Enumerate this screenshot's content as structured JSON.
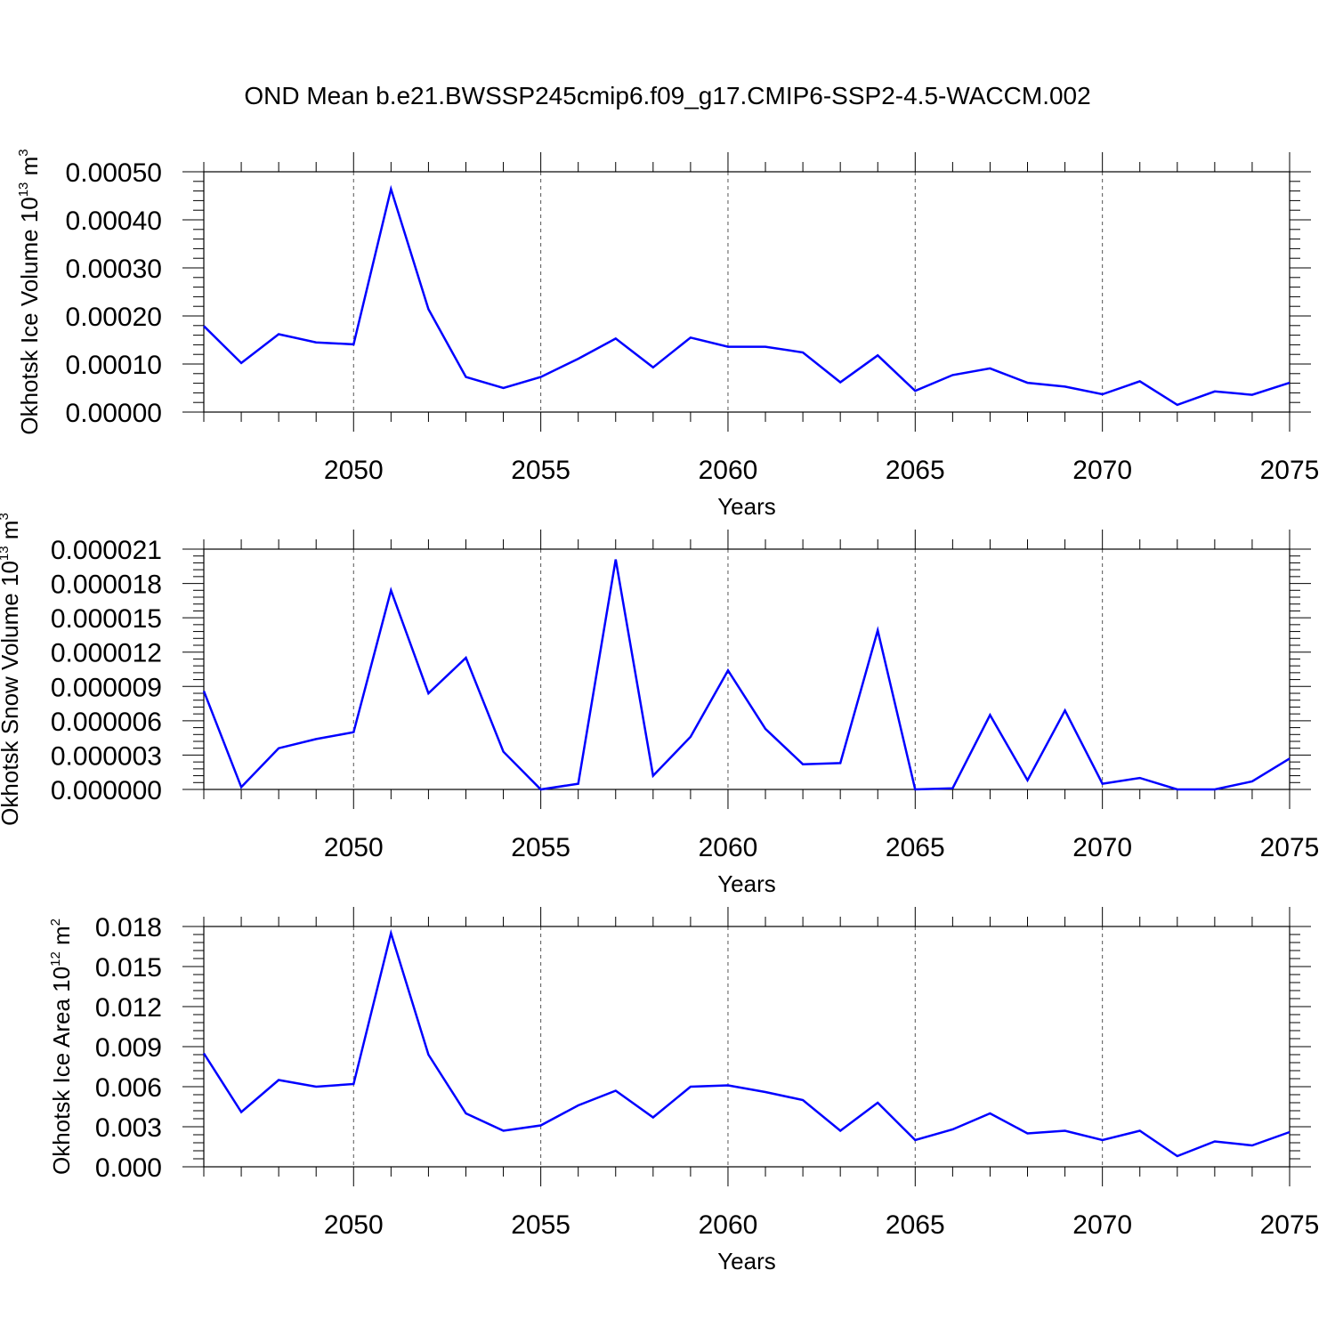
{
  "title": "OND Mean b.e21.BWSSP245cmip6.f09_g17.CMIP6-SSP2-4.5-WACCM.002",
  "chart_data": [
    {
      "type": "line",
      "ylabel_main": "Okhotsk Ice Volume 10",
      "ylabel_exp": "13",
      "ylabel_unit": " m",
      "ylabel_unit_exp": "3",
      "xlabel": "Years",
      "xlim": [
        2046,
        2075
      ],
      "ylim": [
        0,
        0.0005
      ],
      "yticks": [
        0,
        0.0001,
        0.0002,
        0.0003,
        0.0004,
        0.0005
      ],
      "ytick_labels": [
        "0.00000",
        "0.00010",
        "0.00020",
        "0.00030",
        "0.00040",
        "0.00050"
      ],
      "xticks": [
        2050,
        2055,
        2060,
        2065,
        2070,
        2075
      ],
      "xtick_labels": [
        "2050",
        "2055",
        "2060",
        "2065",
        "2070",
        "2075"
      ],
      "color": "#0000ff",
      "x": [
        2046,
        2047,
        2048,
        2049,
        2050,
        2051,
        2052,
        2053,
        2054,
        2055,
        2056,
        2057,
        2058,
        2059,
        2060,
        2061,
        2062,
        2063,
        2064,
        2065,
        2066,
        2067,
        2068,
        2069,
        2070,
        2071,
        2072,
        2073,
        2074,
        2075
      ],
      "values": [
        0.000179,
        0.000102,
        0.000162,
        0.000145,
        0.000141,
        0.000464,
        0.000214,
        7.3e-05,
        5e-05,
        7.3e-05,
        0.000111,
        0.000153,
        9.3e-05,
        0.000155,
        0.000136,
        0.000136,
        0.000124,
        6.2e-05,
        0.000118,
        4.4e-05,
        7.7e-05,
        9.1e-05,
        6.1e-05,
        5.3e-05,
        3.7e-05,
        6.4e-05,
        1.5e-05,
        4.3e-05,
        3.6e-05,
        6.1e-05
      ]
    },
    {
      "type": "line",
      "ylabel_main": "Okhotsk Snow Volume 10",
      "ylabel_exp": "13",
      "ylabel_unit": " m",
      "ylabel_unit_exp": "3",
      "xlabel": "Years",
      "xlim": [
        2046,
        2075
      ],
      "ylim": [
        0,
        2.1e-05
      ],
      "yticks": [
        0,
        3e-06,
        6e-06,
        9e-06,
        1.2e-05,
        1.5e-05,
        1.8e-05,
        2.1e-05
      ],
      "ytick_labels": [
        "0.000000",
        "0.000003",
        "0.000006",
        "0.000009",
        "0.000012",
        "0.000015",
        "0.000018",
        "0.000021"
      ],
      "xticks": [
        2050,
        2055,
        2060,
        2065,
        2070,
        2075
      ],
      "xtick_labels": [
        "2050",
        "2055",
        "2060",
        "2065",
        "2070",
        "2075"
      ],
      "color": "#0000ff",
      "x": [
        2046,
        2047,
        2048,
        2049,
        2050,
        2051,
        2052,
        2053,
        2054,
        2055,
        2056,
        2057,
        2058,
        2059,
        2060,
        2061,
        2062,
        2063,
        2064,
        2065,
        2066,
        2067,
        2068,
        2069,
        2070,
        2071,
        2072,
        2073,
        2074,
        2075
      ],
      "values": [
        8.6e-06,
        2e-07,
        3.6e-06,
        4.4e-06,
        5e-06,
        1.74e-05,
        8.4e-06,
        1.15e-05,
        3.3e-06,
        0.0,
        5e-07,
        2.01e-05,
        1.2e-06,
        4.6e-06,
        1.04e-05,
        5.3e-06,
        2.2e-06,
        2.3e-06,
        1.39e-05,
        0.0,
        1e-07,
        6.5e-06,
        8e-07,
        6.9e-06,
        5e-07,
        1e-06,
        0.0,
        0.0,
        7e-07,
        2.7e-06
      ]
    },
    {
      "type": "line",
      "ylabel_main": "Okhotsk Ice Area 10",
      "ylabel_exp": "12",
      "ylabel_unit": " m",
      "ylabel_unit_exp": "2",
      "xlabel": "Years",
      "xlim": [
        2046,
        2075
      ],
      "ylim": [
        0,
        0.018
      ],
      "yticks": [
        0,
        0.003,
        0.006,
        0.009,
        0.012,
        0.015,
        0.018
      ],
      "ytick_labels": [
        "0.000",
        "0.003",
        "0.006",
        "0.009",
        "0.012",
        "0.015",
        "0.018"
      ],
      "xticks": [
        2050,
        2055,
        2060,
        2065,
        2070,
        2075
      ],
      "xtick_labels": [
        "2050",
        "2055",
        "2060",
        "2065",
        "2070",
        "2075"
      ],
      "color": "#0000ff",
      "x": [
        2046,
        2047,
        2048,
        2049,
        2050,
        2051,
        2052,
        2053,
        2054,
        2055,
        2056,
        2057,
        2058,
        2059,
        2060,
        2061,
        2062,
        2063,
        2064,
        2065,
        2066,
        2067,
        2068,
        2069,
        2070,
        2071,
        2072,
        2073,
        2074,
        2075
      ],
      "values": [
        0.0085,
        0.0041,
        0.0065,
        0.006,
        0.0062,
        0.0175,
        0.0084,
        0.004,
        0.0027,
        0.0031,
        0.0046,
        0.0057,
        0.0037,
        0.006,
        0.0061,
        0.0056,
        0.005,
        0.0027,
        0.0048,
        0.002,
        0.0028,
        0.004,
        0.0025,
        0.0027,
        0.002,
        0.0027,
        0.0008,
        0.0019,
        0.0016,
        0.0026
      ]
    }
  ]
}
